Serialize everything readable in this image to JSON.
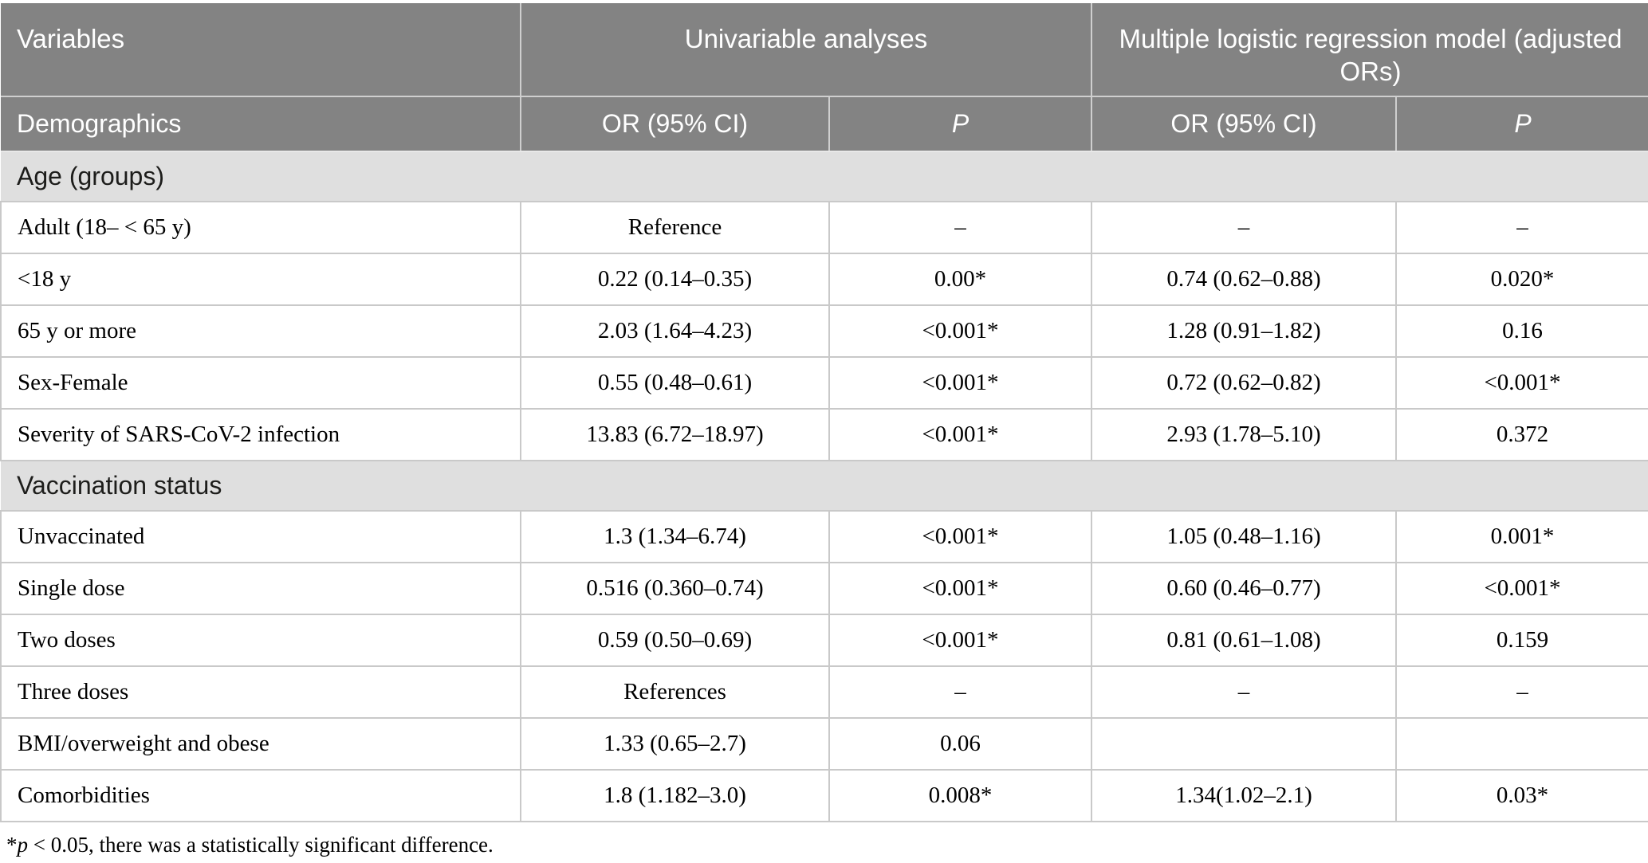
{
  "table": {
    "header_row1": {
      "variables": "Variables",
      "univariable": "Univariable analyses",
      "multivariable": "Multiple logistic regression model (adjusted ORs)"
    },
    "header_row2": [
      "Demographics",
      "OR (95% CI)",
      "P",
      "OR (95% CI)",
      "P"
    ],
    "sections": [
      {
        "title": "Age (groups)",
        "rows": [
          [
            "Adult (18– < 65 y)",
            "Reference",
            "–",
            "–",
            "–"
          ],
          [
            "<18 y",
            "0.22 (0.14–0.35)",
            "0.00*",
            "0.74 (0.62–0.88)",
            "0.020*"
          ],
          [
            "65 y or more",
            "2.03 (1.64–4.23)",
            "<0.001*",
            "1.28 (0.91–1.82)",
            "0.16"
          ],
          [
            "Sex-Female",
            "0.55 (0.48–0.61)",
            "<0.001*",
            "0.72 (0.62–0.82)",
            "<0.001*"
          ],
          [
            "Severity of SARS-CoV-2 infection",
            "13.83 (6.72–18.97)",
            "<0.001*",
            "2.93 (1.78–5.10)",
            "0.372"
          ]
        ]
      },
      {
        "title": "Vaccination status",
        "rows": [
          [
            "Unvaccinated",
            "1.3 (1.34–6.74)",
            "<0.001*",
            "1.05 (0.48–1.16)",
            "0.001*"
          ],
          [
            "Single dose",
            "0.516 (0.360–0.74)",
            "<0.001*",
            "0.60 (0.46–0.77)",
            "<0.001*"
          ],
          [
            "Two doses",
            "0.59 (0.50–0.69)",
            "<0.001*",
            "0.81 (0.61–1.08)",
            "0.159"
          ],
          [
            "Three doses",
            "References",
            "–",
            "–",
            "–"
          ],
          [
            "BMI/overweight and obese",
            "1.33 (0.65–2.7)",
            "0.06",
            "",
            ""
          ],
          [
            "Comorbidities",
            "1.8 (1.182–3.0)",
            "0.008*",
            "1.34(1.02–2.1)",
            "0.03*"
          ]
        ]
      }
    ],
    "footnote": {
      "marker": "*",
      "var": "p",
      "text": " < 0.05, there was a statistically significant difference."
    }
  },
  "colors": {
    "header_bg": "#838383",
    "header_text": "#ffffff",
    "section_bg": "#dfdfdf",
    "body_border": "#c9c9c9"
  }
}
